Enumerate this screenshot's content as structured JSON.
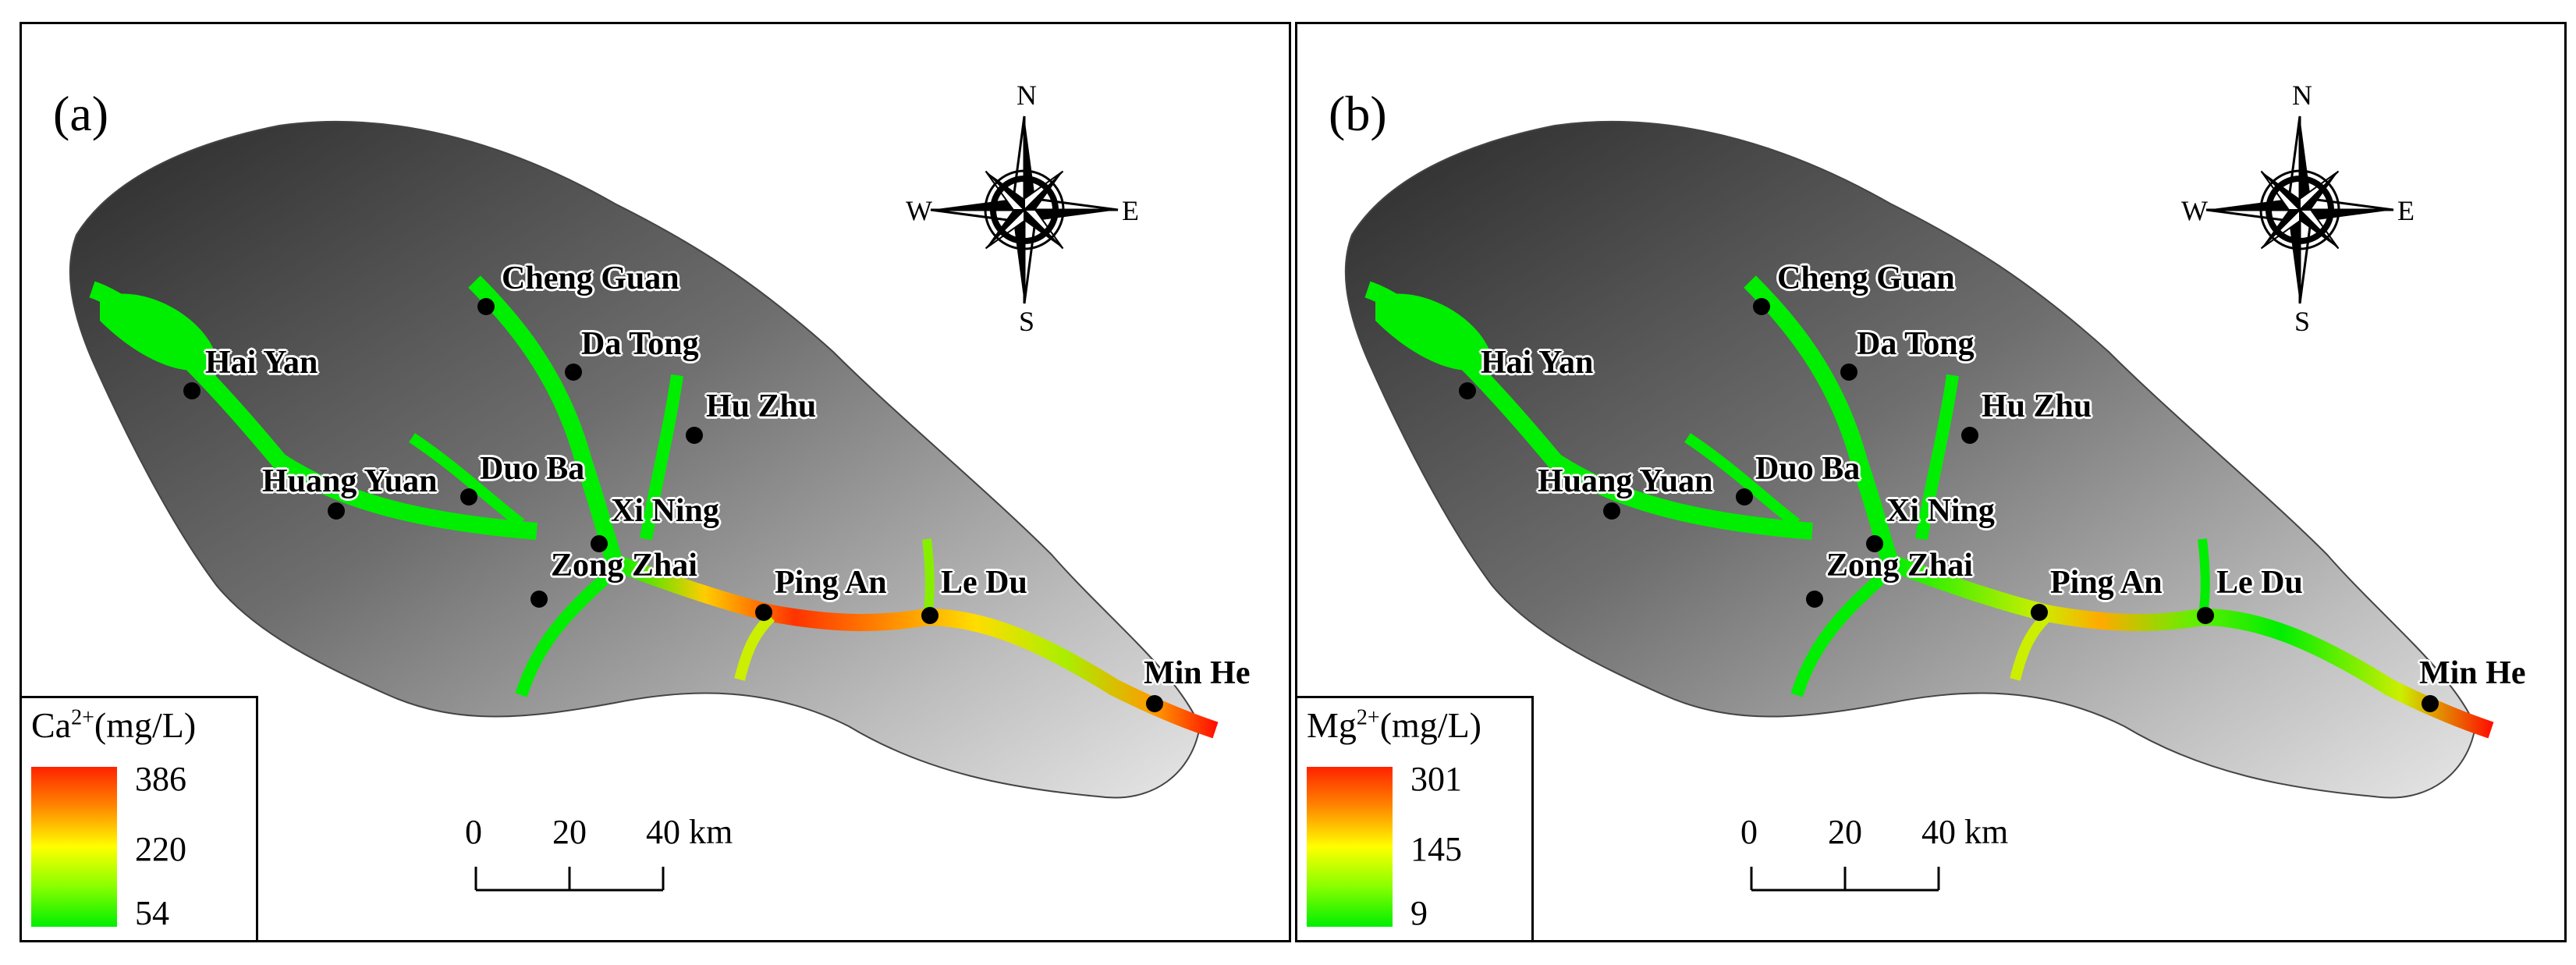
{
  "panels": [
    {
      "label": "(a)",
      "legend": {
        "ion": "Ca",
        "charge": "2+",
        "unit": "(mg/L)",
        "max": "386",
        "mid": "220",
        "min": "54"
      },
      "scalebar": {
        "ticks": [
          "0",
          "20",
          "40 km"
        ]
      },
      "compass": {
        "n": "N",
        "s": "S",
        "e": "E",
        "w": "W"
      },
      "sites": [
        "Cheng Guan",
        "Da Tong",
        "Hai Yan",
        "Hu Zhu",
        "Duo Ba",
        "Huang Yuan",
        "Xi Ning",
        "Zong Zhai",
        "Ping An",
        "Le Du",
        "Min He"
      ]
    },
    {
      "label": "(b)",
      "legend": {
        "ion": "Mg",
        "charge": "2+",
        "unit": "(mg/L)",
        "max": "301",
        "mid": "145",
        "min": "9"
      },
      "scalebar": {
        "ticks": [
          "0",
          "20",
          "40 km"
        ]
      },
      "compass": {
        "n": "N",
        "s": "S",
        "e": "E",
        "w": "W"
      },
      "sites": [
        "Cheng Guan",
        "Da Tong",
        "Hai Yan",
        "Hu Zhu",
        "Duo Ba",
        "Huang Yuan",
        "Xi Ning",
        "Zong Zhai",
        "Ping An",
        "Le Du",
        "Min He"
      ]
    }
  ],
  "colors": {
    "low": "#00ee00",
    "mid": "#ffff00",
    "high": "#ff2200"
  }
}
